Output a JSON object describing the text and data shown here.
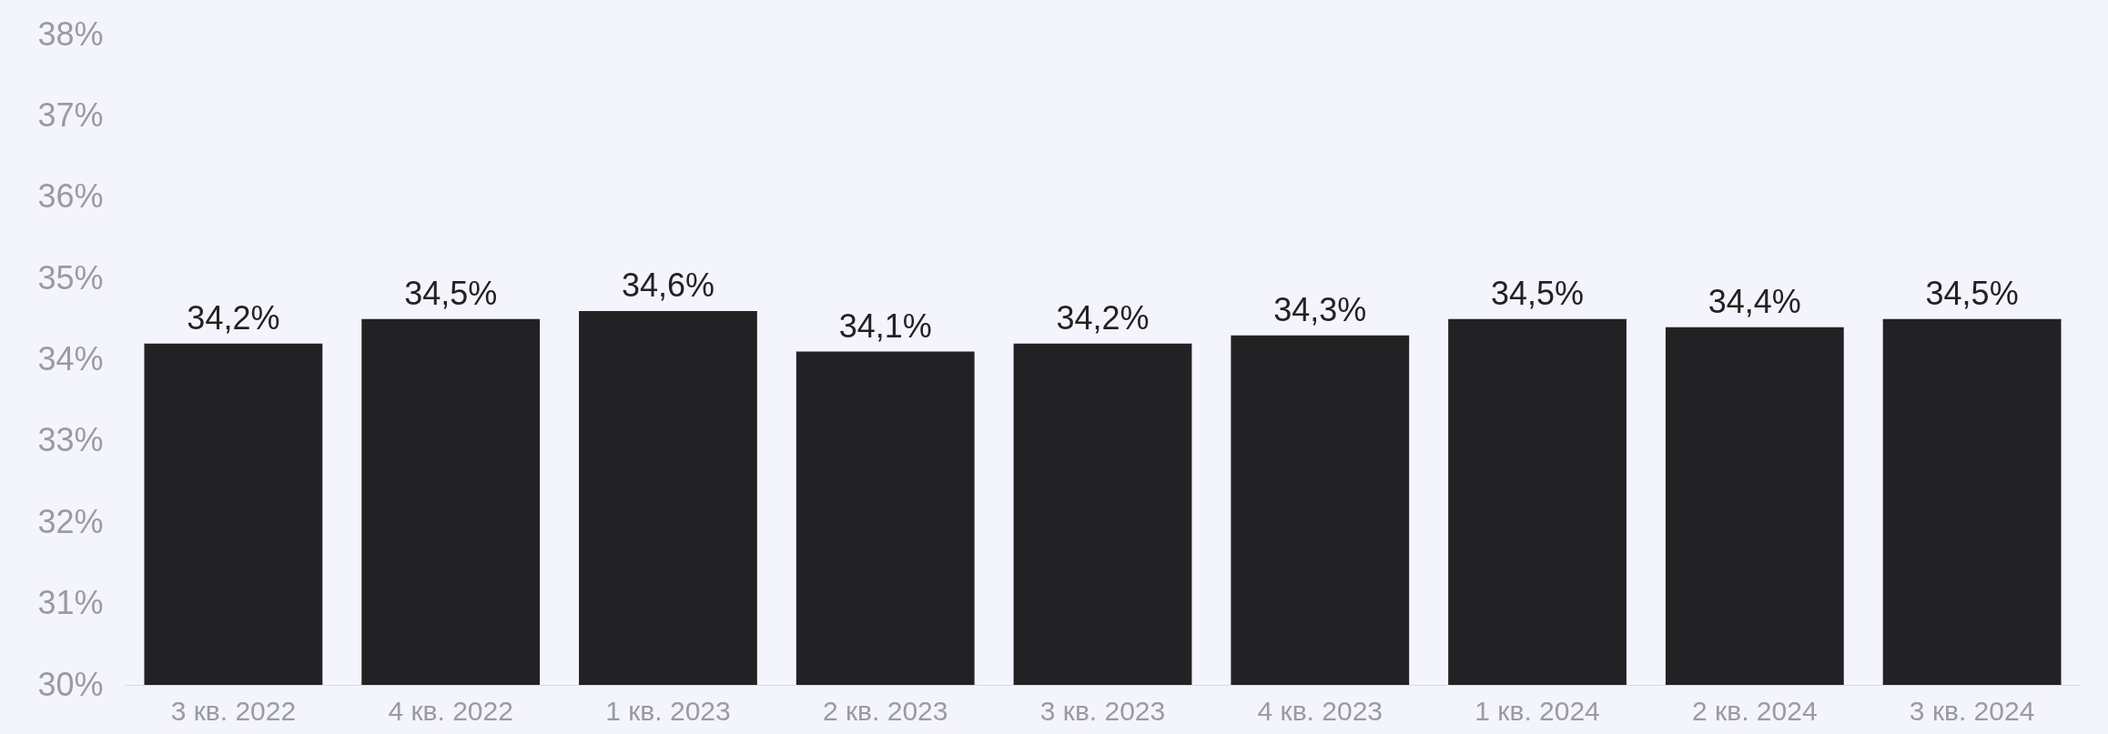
{
  "chart_data": {
    "type": "bar",
    "categories": [
      "3 кв. 2022",
      "4 кв. 2022",
      "1 кв. 2023",
      "2 кв. 2023",
      "3 кв. 2023",
      "4 кв. 2023",
      "1 кв. 2024",
      "2 кв. 2024",
      "3 кв. 2024"
    ],
    "values": [
      34.2,
      34.5,
      34.6,
      34.1,
      34.2,
      34.3,
      34.5,
      34.4,
      34.5
    ],
    "value_labels": [
      "34,2%",
      "34,5%",
      "34,6%",
      "34,1%",
      "34,2%",
      "34,3%",
      "34,5%",
      "34,4%",
      "34,5%"
    ],
    "color": "#222224",
    "ylim": [
      30,
      38
    ],
    "yticks": [
      {
        "value": 30,
        "label": "30%"
      },
      {
        "value": 31,
        "label": "31%"
      },
      {
        "value": 32,
        "label": "32%"
      },
      {
        "value": 33,
        "label": "33%"
      },
      {
        "value": 34,
        "label": "34%"
      },
      {
        "value": 35,
        "label": "35%"
      },
      {
        "value": 36,
        "label": "36%"
      },
      {
        "value": 37,
        "label": "37%"
      },
      {
        "value": 38,
        "label": "38%"
      }
    ],
    "grid": false
  }
}
